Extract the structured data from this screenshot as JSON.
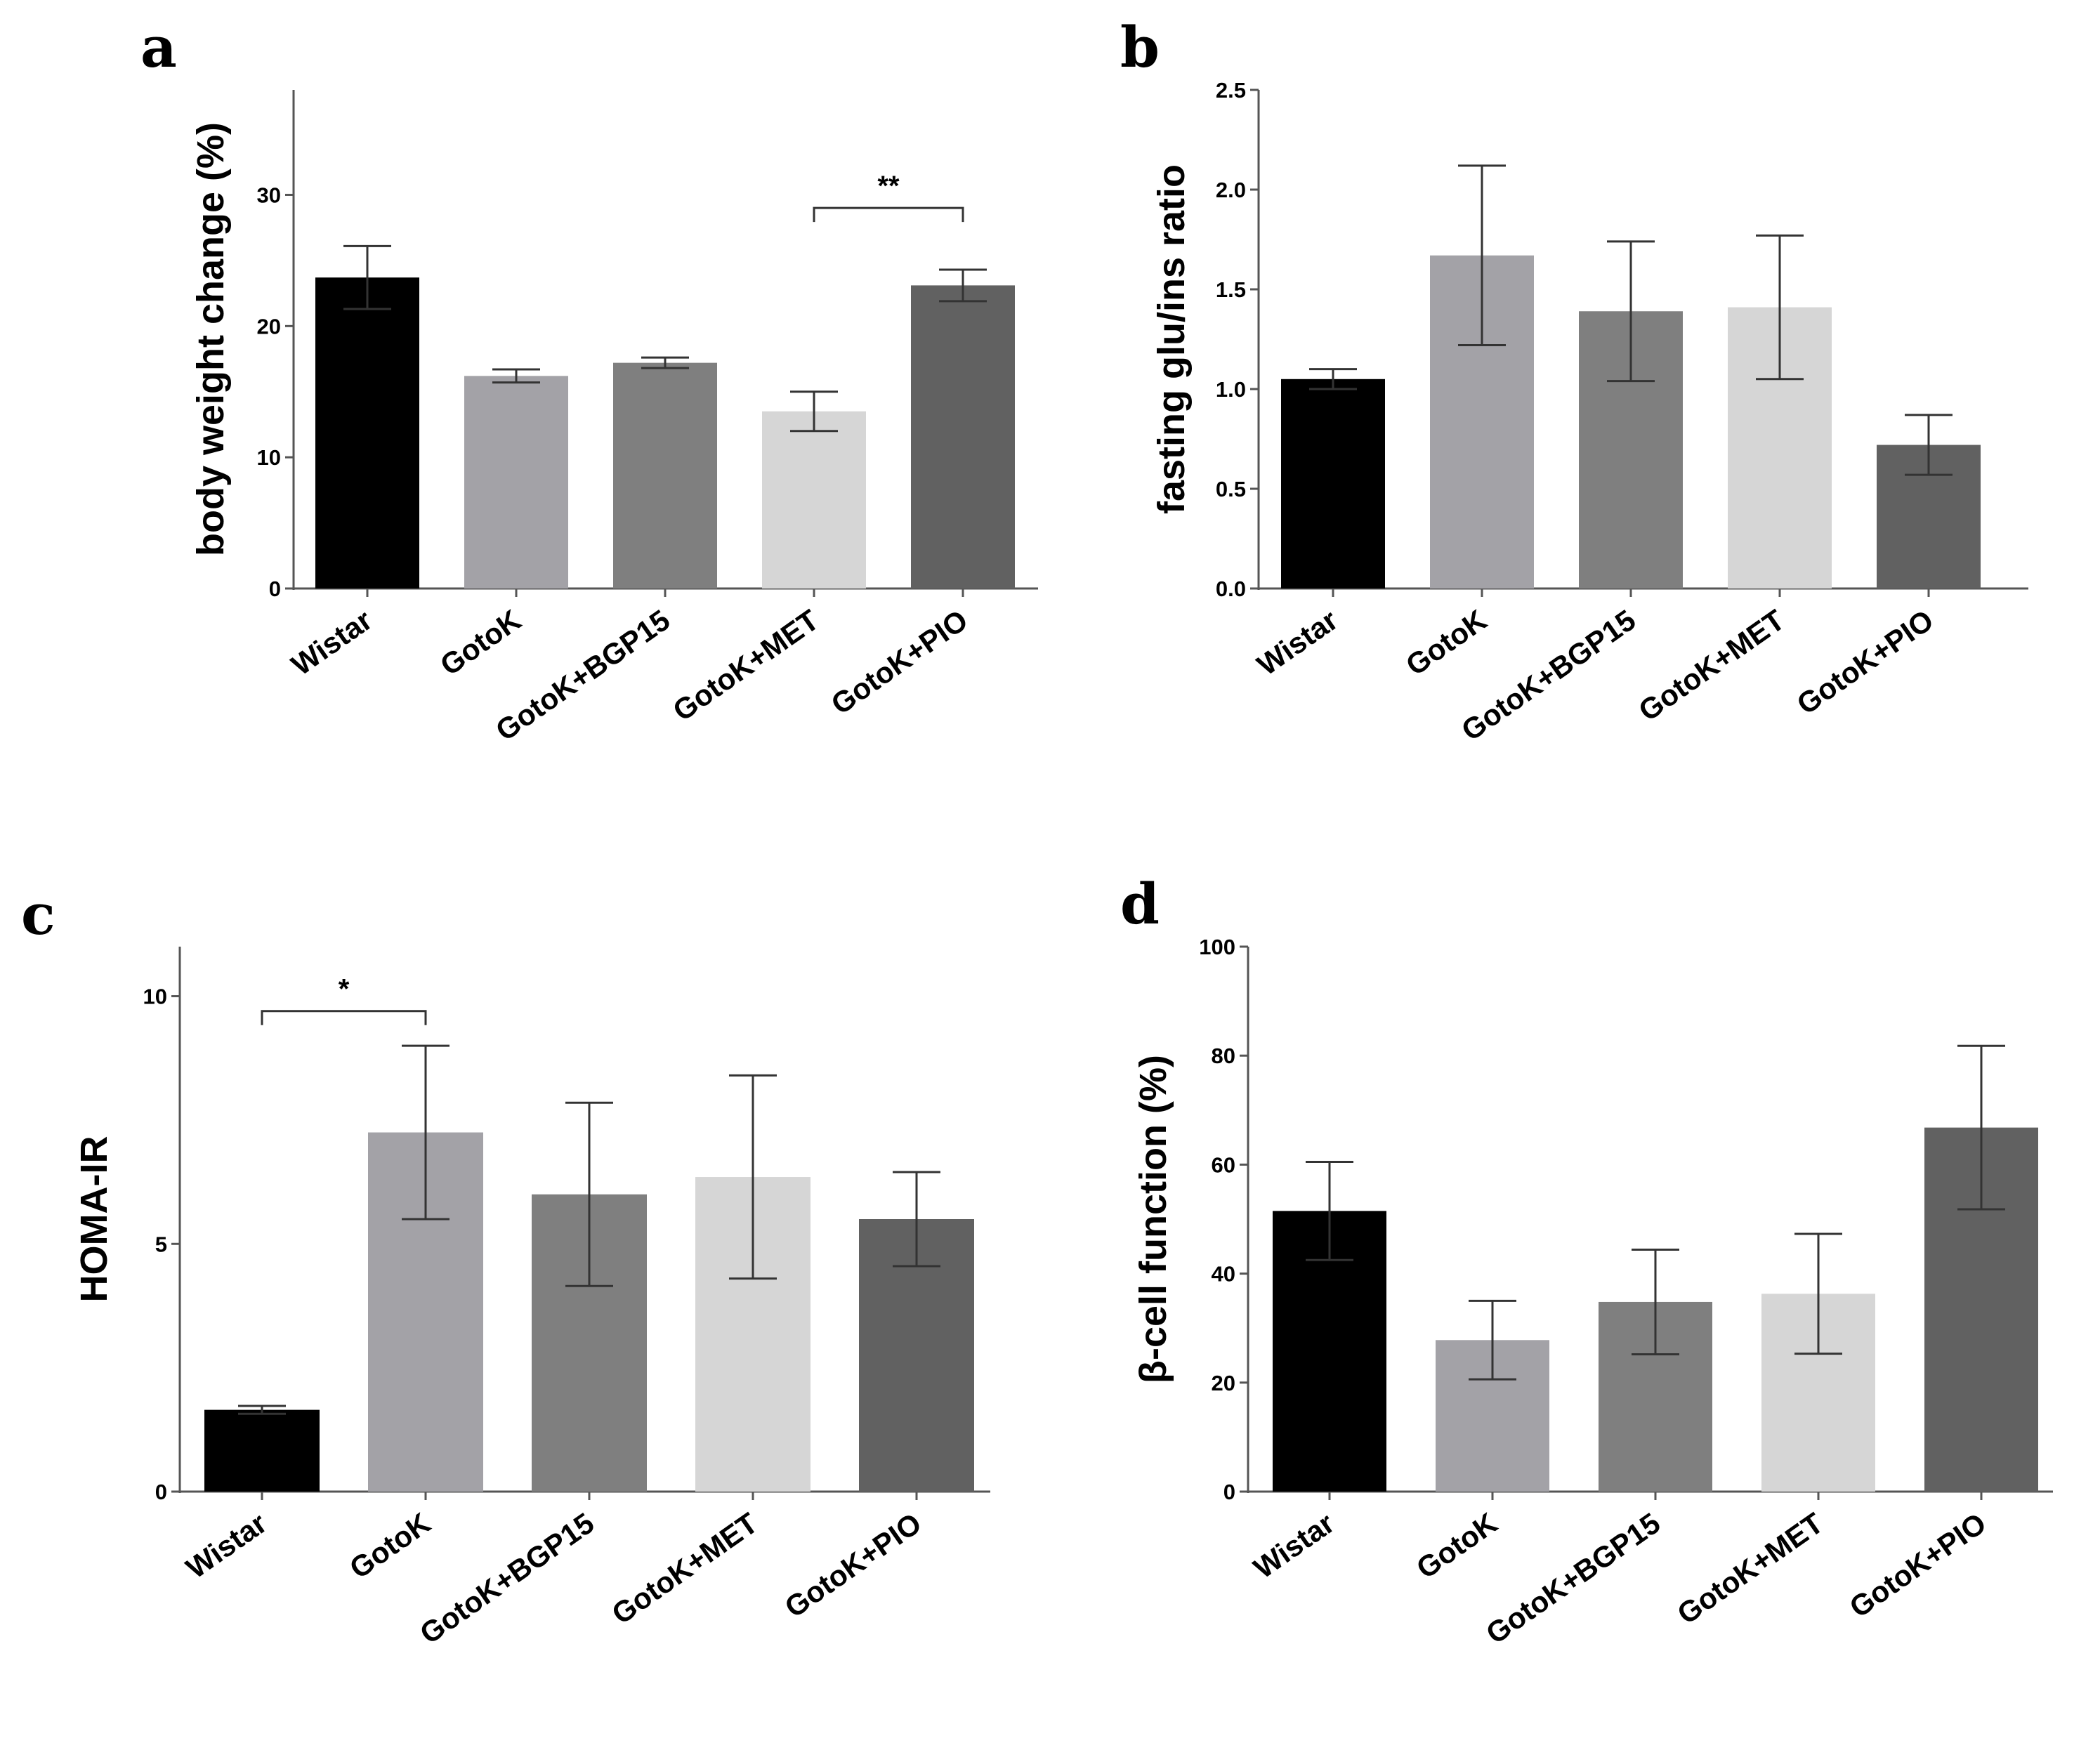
{
  "chart_data": [
    {
      "panel": "a",
      "type": "bar",
      "categories": [
        "Wistar",
        "GotoK",
        "GotoK+BGP15",
        "GotoK+MET",
        "GotoK+PIO"
      ],
      "values": [
        23.7,
        16.2,
        17.2,
        13.5,
        23.1
      ],
      "errors": [
        2.4,
        0.5,
        0.4,
        1.5,
        1.2
      ],
      "colors": [
        "#000000",
        "#a3a2a7",
        "#7f7f7f",
        "#d6d6d6",
        "#616161"
      ],
      "ylabel": "body weight change (%)",
      "ylim": [
        0,
        38
      ],
      "yticks": [
        0,
        10,
        20,
        30
      ],
      "significance": [
        {
          "from": 3,
          "to": 4,
          "label": "**",
          "y": 29
        }
      ]
    },
    {
      "panel": "b",
      "type": "bar",
      "categories": [
        "Wistar",
        "GotoK",
        "GotoK+BGP15",
        "GotoK+MET",
        "GotoK+PIO"
      ],
      "values": [
        1.05,
        1.67,
        1.39,
        1.41,
        0.72
      ],
      "errors": [
        0.05,
        0.45,
        0.35,
        0.36,
        0.15
      ],
      "colors": [
        "#000000",
        "#a3a2a7",
        "#7f7f7f",
        "#d6d6d6",
        "#616161"
      ],
      "ylabel": "fasting glu/ins ratio",
      "ylim": [
        0,
        2.5
      ],
      "yticks": [
        "0.0",
        "0.5",
        "1.0",
        "1.5",
        "2.0",
        "2.5"
      ],
      "significance": []
    },
    {
      "panel": "c",
      "type": "bar",
      "categories": [
        "Wistar",
        "GotoK",
        "GotoK+BGP15",
        "GotoK+MET",
        "GotoK+PIO"
      ],
      "values": [
        1.65,
        7.25,
        6.0,
        6.35,
        5.5
      ],
      "errors": [
        0.08,
        1.75,
        1.85,
        2.05,
        0.95
      ],
      "colors": [
        "#000000",
        "#a3a2a7",
        "#7f7f7f",
        "#d6d6d6",
        "#616161"
      ],
      "ylabel": "HOMA-IR",
      "ylim": [
        0,
        11
      ],
      "yticks": [
        0,
        5,
        10
      ],
      "significance": [
        {
          "from": 0,
          "to": 1,
          "label": "*",
          "y": 9.7
        }
      ]
    },
    {
      "panel": "d",
      "type": "bar",
      "categories": [
        "Wistar",
        "GotoK",
        "GotoK+BGP15",
        "GotoK+MET",
        "GotoK+PIO"
      ],
      "values": [
        51.5,
        27.8,
        34.8,
        36.3,
        66.8
      ],
      "errors": [
        9.0,
        7.2,
        9.6,
        11.0,
        15.0
      ],
      "colors": [
        "#000000",
        "#a3a2a7",
        "#7f7f7f",
        "#d6d6d6",
        "#616161"
      ],
      "ylabel": "β-cell function (%)",
      "ylim": [
        0,
        100
      ],
      "yticks": [
        0,
        20,
        40,
        60,
        80,
        100
      ],
      "significance": []
    }
  ]
}
